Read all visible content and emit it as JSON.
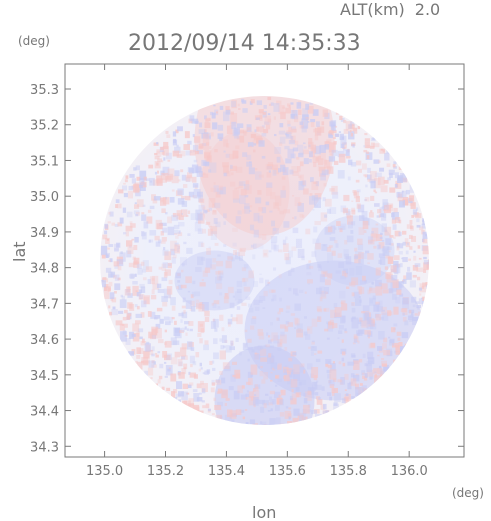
{
  "header": {
    "alt_label": "ALT(km)",
    "alt_value": "2.0",
    "timestamp": "2012/09/14 14:35:33"
  },
  "axes": {
    "y_unit": "(deg)",
    "x_unit": "(deg)",
    "y_label": "lat",
    "x_label": "lon",
    "x_range": [
      134.87,
      136.18
    ],
    "y_range": [
      34.27,
      35.37
    ],
    "x_ticks": [
      135.0,
      135.2,
      135.4,
      135.6,
      135.8,
      136.0
    ],
    "x_tick_labels": [
      "135.0",
      "135.2",
      "135.4",
      "135.6",
      "135.8",
      "136.0"
    ],
    "y_ticks": [
      35.3,
      35.2,
      35.1,
      35.0,
      34.9,
      34.8,
      34.7,
      34.6,
      34.5,
      34.4,
      34.3
    ],
    "y_tick_labels": [
      "35.3",
      "35.2",
      "35.1",
      "35.0",
      "34.9",
      "34.8",
      "34.7",
      "34.6",
      "34.5",
      "34.4",
      "34.3"
    ]
  },
  "map": {
    "center_lon": 135.525,
    "center_lat": 34.82,
    "radius_deg": 0.54,
    "colors": {
      "positive": "#f6c8c8",
      "negative": "#c8ccf4",
      "neutral": "#eeeffc",
      "frame": "#7a7a7a"
    }
  }
}
